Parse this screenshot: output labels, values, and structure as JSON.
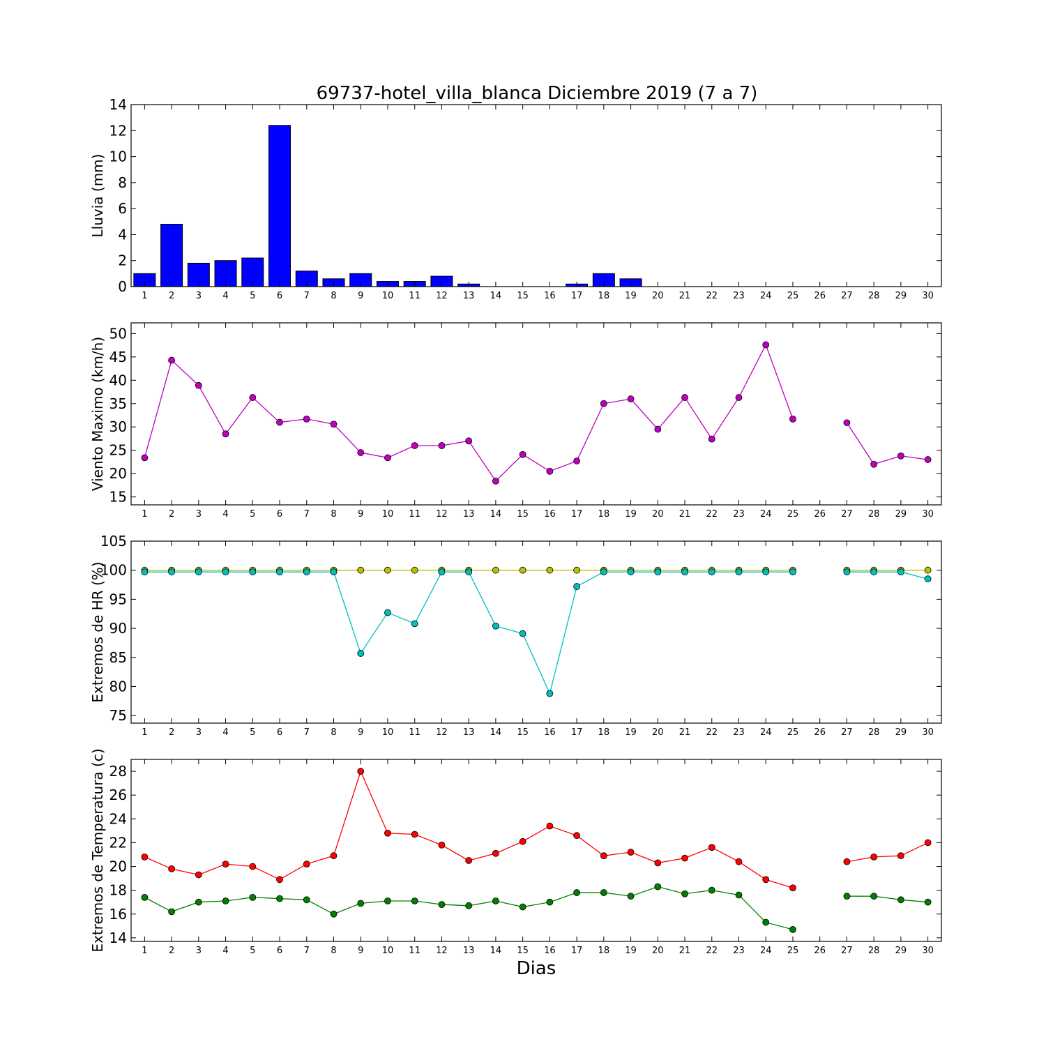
{
  "figure": {
    "title": "69737-hotel_villa_blanca Diciembre 2019  (7 a 7)",
    "xlabel": "Dias"
  },
  "chart_data": [
    {
      "type": "bar",
      "ylabel": "Lluvia (mm)",
      "ylim": [
        0,
        14
      ],
      "yticks": [
        0,
        2,
        4,
        6,
        8,
        10,
        12,
        14
      ],
      "xlim": [
        0.5,
        30.5
      ],
      "categories": [
        1,
        2,
        3,
        4,
        5,
        6,
        7,
        8,
        9,
        10,
        11,
        12,
        13,
        14,
        15,
        16,
        17,
        18,
        19,
        20,
        21,
        22,
        23,
        24,
        25,
        26,
        27,
        28,
        29,
        30
      ],
      "series": [
        {
          "color": "#0000ff",
          "values": [
            1.0,
            4.8,
            1.8,
            2.0,
            2.2,
            12.4,
            1.2,
            0.6,
            1.0,
            0.4,
            0.4,
            0.8,
            0.2,
            0,
            0,
            0,
            0.2,
            1.0,
            0.6,
            0,
            0,
            0,
            0,
            0,
            0,
            0,
            0,
            0,
            0,
            0
          ]
        }
      ]
    },
    {
      "type": "line",
      "ylabel": "Viento Maximo (km/h)",
      "ylim": [
        13.3,
        52.3
      ],
      "yticks": [
        15,
        20,
        25,
        30,
        35,
        40,
        45,
        50
      ],
      "xlim": [
        0.5,
        30.5
      ],
      "categories": [
        1,
        2,
        3,
        4,
        5,
        6,
        7,
        8,
        9,
        10,
        11,
        12,
        13,
        14,
        15,
        16,
        17,
        18,
        19,
        20,
        21,
        22,
        23,
        24,
        25,
        26,
        27,
        28,
        29,
        30
      ],
      "series": [
        {
          "color": "#bf00bf",
          "values": [
            23.4,
            44.3,
            38.9,
            28.5,
            36.3,
            31.0,
            31.7,
            30.6,
            24.5,
            23.4,
            26.0,
            26.0,
            27.0,
            18.4,
            24.1,
            20.5,
            22.7,
            35.0,
            36.0,
            29.5,
            36.3,
            27.4,
            36.3,
            47.6,
            31.7,
            null,
            30.9,
            22.0,
            23.8,
            23.0
          ]
        }
      ]
    },
    {
      "type": "line",
      "ylabel": "Extremos de HR (%)",
      "ylim": [
        73.7,
        105
      ],
      "yticks": [
        75,
        80,
        85,
        90,
        95,
        100,
        105
      ],
      "xlim": [
        0.5,
        30.5
      ],
      "categories": [
        1,
        2,
        3,
        4,
        5,
        6,
        7,
        8,
        9,
        10,
        11,
        12,
        13,
        14,
        15,
        16,
        17,
        18,
        19,
        20,
        21,
        22,
        23,
        24,
        25,
        26,
        27,
        28,
        29,
        30
      ],
      "series": [
        {
          "color": "#bfbf00",
          "values": [
            100,
            100,
            100,
            100,
            100,
            100,
            100,
            100,
            100,
            100,
            100,
            100,
            100,
            100,
            100,
            100,
            100,
            100,
            100,
            100,
            100,
            100,
            100,
            100,
            100,
            null,
            100,
            100,
            100,
            100
          ]
        },
        {
          "color": "#00bfbf",
          "values": [
            99.7,
            99.7,
            99.7,
            99.7,
            99.7,
            99.7,
            99.7,
            99.7,
            85.7,
            92.7,
            90.8,
            99.7,
            99.7,
            90.4,
            89.1,
            78.8,
            97.2,
            99.7,
            99.7,
            99.7,
            99.7,
            99.7,
            99.7,
            99.7,
            99.7,
            null,
            99.7,
            99.7,
            99.7,
            98.5
          ]
        }
      ]
    },
    {
      "type": "line",
      "ylabel": "Extremos de Temperatura (c)",
      "ylim": [
        13.7,
        29.0
      ],
      "yticks": [
        14,
        16,
        18,
        20,
        22,
        24,
        26,
        28
      ],
      "xlim": [
        0.5,
        30.5
      ],
      "categories": [
        1,
        2,
        3,
        4,
        5,
        6,
        7,
        8,
        9,
        10,
        11,
        12,
        13,
        14,
        15,
        16,
        17,
        18,
        19,
        20,
        21,
        22,
        23,
        24,
        25,
        26,
        27,
        28,
        29,
        30
      ],
      "series": [
        {
          "color": "#ff0000",
          "values": [
            20.8,
            19.8,
            19.3,
            20.2,
            20.0,
            18.9,
            20.2,
            20.9,
            28.0,
            22.8,
            22.7,
            21.8,
            20.5,
            21.1,
            22.1,
            23.4,
            22.6,
            20.9,
            21.2,
            20.3,
            20.7,
            21.6,
            20.4,
            18.9,
            18.2,
            null,
            20.4,
            20.8,
            20.9,
            22.0
          ]
        },
        {
          "color": "#008000",
          "values": [
            17.4,
            16.2,
            17.0,
            17.1,
            17.4,
            17.3,
            17.2,
            16.0,
            16.9,
            17.1,
            17.1,
            16.8,
            16.7,
            17.1,
            16.6,
            17.0,
            17.8,
            17.8,
            17.5,
            18.3,
            17.7,
            18.0,
            17.6,
            15.3,
            14.7,
            null,
            17.5,
            17.5,
            17.2,
            17.0
          ]
        }
      ]
    }
  ]
}
